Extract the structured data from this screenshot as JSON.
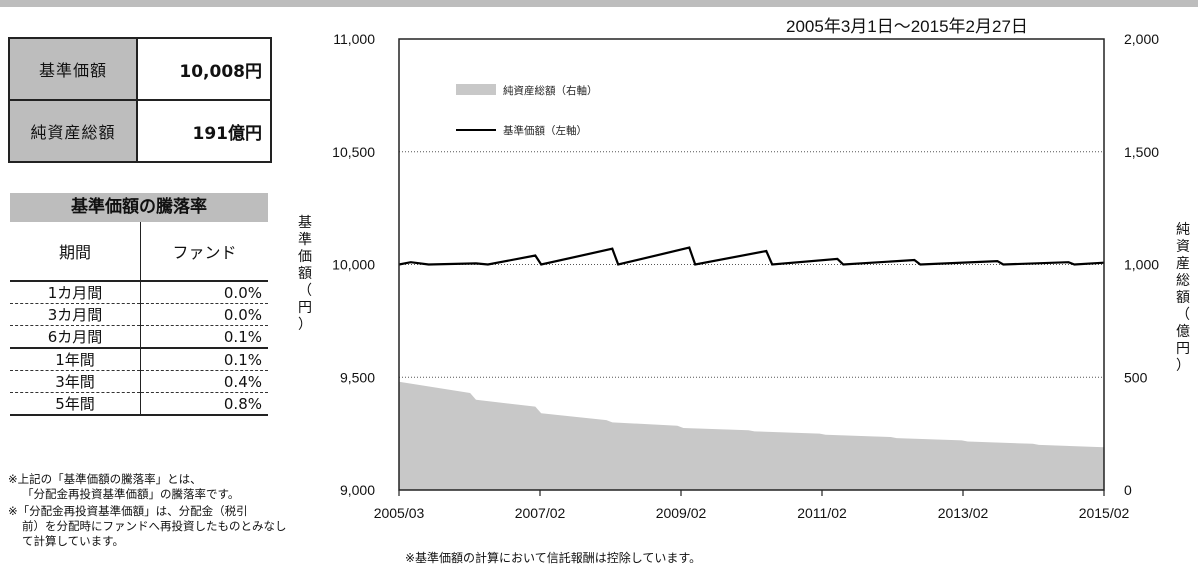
{
  "header": {
    "period": "2005年3月1日～2015年2月27日"
  },
  "summary": [
    {
      "label": "基準価額",
      "value": "10,008円"
    },
    {
      "label": "純資産総額",
      "value": "191億円"
    }
  ],
  "rate_table": {
    "title": "基準価額の騰落率",
    "headers": [
      "期間",
      "ファンド"
    ],
    "rows": [
      {
        "period": "1カ月間",
        "value": "0.0%"
      },
      {
        "period": "3カ月間",
        "value": "0.0%"
      },
      {
        "period": "6カ月間",
        "value": "0.1%"
      },
      {
        "period": "1年間",
        "value": "0.1%"
      },
      {
        "period": "3年間",
        "value": "0.4%"
      },
      {
        "period": "5年間",
        "value": "0.8%"
      }
    ]
  },
  "notes": {
    "n1a": "※上記の「基準価額の騰落率」とは、",
    "n1b": "「分配金再投資基準価額」の騰落率です。",
    "n2a": "※「分配金再投資基準価額」は、分配金（税引",
    "n2b": "前）を分配時にファンドへ再投資したものとみなし",
    "n2c": "て計算しています。",
    "bottom": "※基準価額の計算において信託報酬は控除しています。"
  },
  "chart_data": {
    "type": "line",
    "x_tick_labels": [
      "2005/03",
      "2007/02",
      "2009/02",
      "2011/02",
      "2013/02",
      "2015/02"
    ],
    "xlim": [
      "2005-03",
      "2015-02"
    ],
    "y_left": {
      "label": "基準価額（円）",
      "range": [
        9000,
        11000
      ],
      "ticks": [
        "9,000",
        "9,500",
        "10,000",
        "10,500",
        "11,000"
      ]
    },
    "y_right": {
      "label": "純資産総額（億円）",
      "range": [
        0,
        2000
      ],
      "ticks": [
        "0",
        "500",
        "1,000",
        "1,500",
        "2,000"
      ]
    },
    "grid": "dotted horizontal",
    "legend": "top-left",
    "series": [
      {
        "name": "純資産総額（右軸）",
        "axis": "right",
        "kind": "area",
        "color": "#c8c8c8",
        "points": [
          [
            "2005-03",
            480
          ],
          [
            "2006-03",
            430
          ],
          [
            "2006-04",
            400
          ],
          [
            "2007-02",
            370
          ],
          [
            "2007-03",
            340
          ],
          [
            "2008-02",
            310
          ],
          [
            "2008-03",
            300
          ],
          [
            "2009-02",
            285
          ],
          [
            "2009-03",
            275
          ],
          [
            "2010-02",
            265
          ],
          [
            "2010-03",
            260
          ],
          [
            "2011-02",
            250
          ],
          [
            "2011-03",
            245
          ],
          [
            "2012-02",
            235
          ],
          [
            "2012-03",
            230
          ],
          [
            "2013-02",
            220
          ],
          [
            "2013-03",
            215
          ],
          [
            "2014-02",
            205
          ],
          [
            "2014-03",
            200
          ],
          [
            "2015-02",
            190
          ]
        ]
      },
      {
        "name": "基準価額（左軸）",
        "axis": "left",
        "kind": "line",
        "color": "#000000",
        "points": [
          [
            "2005-03",
            10000
          ],
          [
            "2005-05",
            10010
          ],
          [
            "2005-08",
            10000
          ],
          [
            "2006-04",
            10005
          ],
          [
            "2006-06",
            10000
          ],
          [
            "2007-02",
            10040
          ],
          [
            "2007-03",
            10000
          ],
          [
            "2008-03",
            10070
          ],
          [
            "2008-04",
            10000
          ],
          [
            "2009-04",
            10075
          ],
          [
            "2009-05",
            10000
          ],
          [
            "2010-05",
            10060
          ],
          [
            "2010-06",
            10000
          ],
          [
            "2011-05",
            10025
          ],
          [
            "2011-06",
            10000
          ],
          [
            "2012-06",
            10020
          ],
          [
            "2012-07",
            10000
          ],
          [
            "2013-08",
            10015
          ],
          [
            "2013-09",
            10000
          ],
          [
            "2014-08",
            10010
          ],
          [
            "2014-09",
            10000
          ],
          [
            "2015-02",
            10008
          ]
        ]
      }
    ]
  }
}
